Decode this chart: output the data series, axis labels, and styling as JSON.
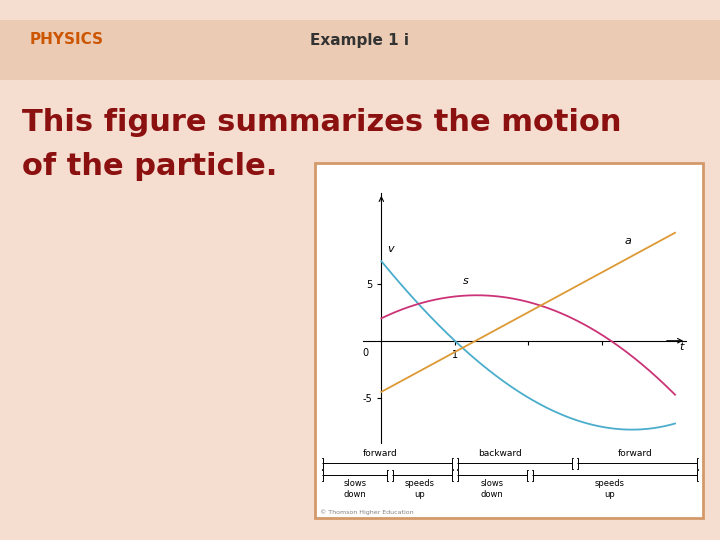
{
  "bg_color_top": "#f0cbb8",
  "bg_color_mid": "#f5ddd0",
  "bg_color_strip": "#e8c4a8",
  "slide_title_text": "PHYSICS",
  "slide_title_color": "#cc5500",
  "slide_title_fontsize": 11,
  "example_text": "Example 1 i",
  "example_color": "#333333",
  "example_fontsize": 11,
  "main_text_line1": "This figure summarizes the motion",
  "main_text_line2": "of the particle.",
  "main_text_color": "#8b1010",
  "main_text_fontsize": 22,
  "box_edgecolor": "#d4996a",
  "v_color": "#4aadcc",
  "s_color": "#cc3377",
  "a_color": "#dd9933"
}
